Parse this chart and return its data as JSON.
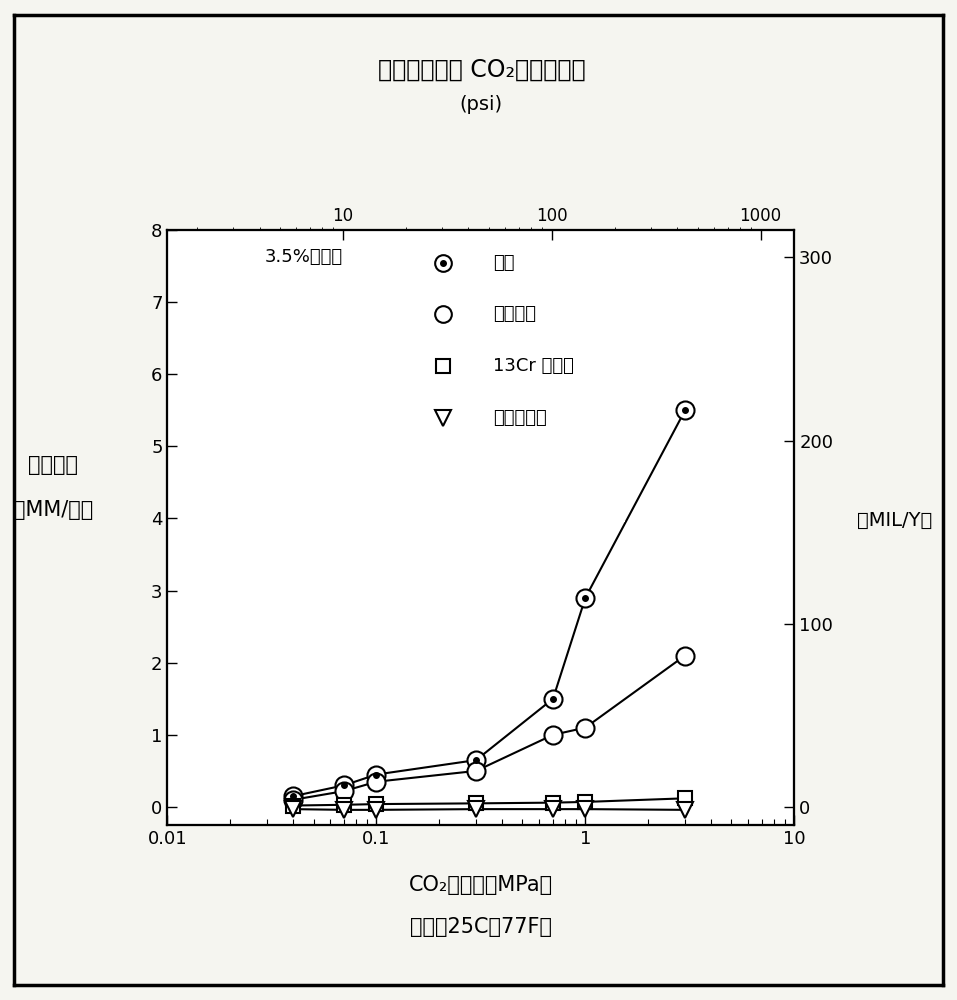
{
  "title_line1": "在腐蚀板上的 CO₂分压的作用",
  "title_line2": "(psi)",
  "xlabel_line1": "CO₂的分压（MPa）",
  "xlabel_line2": "温度：25C（77F）",
  "ylabel_left1": "腐蚀速率",
  "ylabel_left2": "（MM/年）",
  "ylabel_right": "（MIL/Y）",
  "legend_title": "3.5%氯化钓",
  "legend_entries": [
    "碳钓",
    "低合金钓",
    "13Cr 不锈钓",
    "双相不锈钓"
  ],
  "carbon_steel_x": [
    0.04,
    0.07,
    0.1,
    0.3,
    0.7,
    1.0,
    3.0
  ],
  "carbon_steel_y": [
    0.15,
    0.3,
    0.45,
    0.65,
    1.5,
    2.9,
    5.5
  ],
  "low_alloy_x": [
    0.04,
    0.07,
    0.1,
    0.3,
    0.7,
    1.0,
    3.0
  ],
  "low_alloy_y": [
    0.1,
    0.22,
    0.35,
    0.5,
    1.0,
    1.1,
    2.1
  ],
  "cr13_x": [
    0.04,
    0.07,
    0.1,
    0.3,
    0.7,
    1.0,
    3.0
  ],
  "cr13_y": [
    0.02,
    0.03,
    0.04,
    0.05,
    0.06,
    0.07,
    0.12
  ],
  "duplex_x": [
    0.04,
    0.07,
    0.1,
    0.3,
    0.7,
    1.0,
    3.0
  ],
  "duplex_y": [
    -0.03,
    -0.04,
    -0.04,
    -0.03,
    -0.03,
    -0.03,
    -0.04
  ],
  "xmin": 0.01,
  "xmax": 10,
  "ymin": -0.25,
  "ymax": 8,
  "mily_per_mm": 39.37,
  "bg_color": "#f5f5f0",
  "plot_bg": "#ffffff",
  "line_color": "#000000",
  "text_color": "#000000"
}
